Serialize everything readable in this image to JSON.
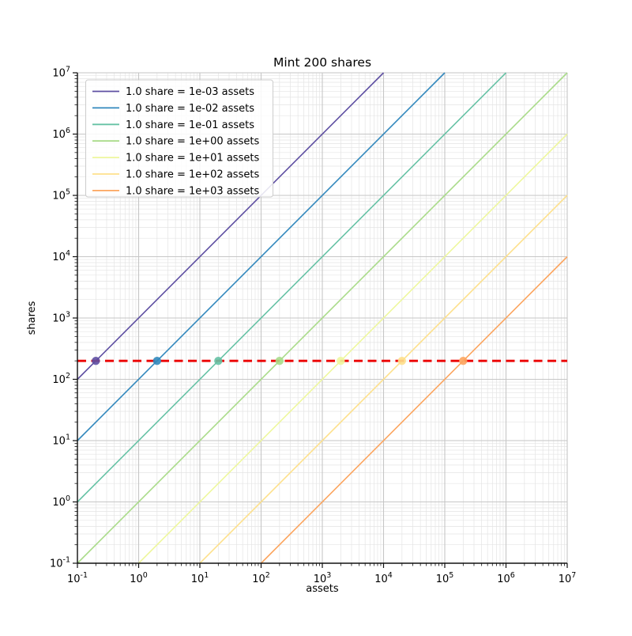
{
  "figure": {
    "background": "#ffffff"
  },
  "chart_data": {
    "type": "line",
    "title": "Mint 200 shares",
    "xlabel": "assets",
    "ylabel": "shares",
    "xscale": "log",
    "yscale": "log",
    "xlim": [
      0.1,
      10000000
    ],
    "ylim": [
      0.1,
      10000000
    ],
    "x_tick_exponents": [
      -1,
      0,
      1,
      2,
      3,
      4,
      5,
      6,
      7
    ],
    "y_tick_exponents": [
      -1,
      0,
      1,
      2,
      3,
      4,
      5,
      6,
      7
    ],
    "grid": {
      "which": "both",
      "major_color": "#c6c6c6",
      "minor_color": "#e4e4e4"
    },
    "series": [
      {
        "label": "1.0 share = 1e-03 assets",
        "assets_per_share": 0.001,
        "color": "#5e4fa2",
        "intersection": {
          "assets": 0.2,
          "shares": 200
        }
      },
      {
        "label": "1.0 share = 1e-02 assets",
        "assets_per_share": 0.01,
        "color": "#3288bd",
        "intersection": {
          "assets": 2,
          "shares": 200
        }
      },
      {
        "label": "1.0 share = 1e-01 assets",
        "assets_per_share": 0.1,
        "color": "#66c2a5",
        "intersection": {
          "assets": 20,
          "shares": 200
        }
      },
      {
        "label": "1.0 share = 1e+00 assets",
        "assets_per_share": 1,
        "color": "#a9db89",
        "intersection": {
          "assets": 200,
          "shares": 200
        }
      },
      {
        "label": "1.0 share = 1e+01 assets",
        "assets_per_share": 10,
        "color": "#eef79e",
        "intersection": {
          "assets": 2000,
          "shares": 200
        }
      },
      {
        "label": "1.0 share = 1e+02 assets",
        "assets_per_share": 100,
        "color": "#fee08b",
        "intersection": {
          "assets": 20000,
          "shares": 200
        }
      },
      {
        "label": "1.0 share = 1e+03 assets",
        "assets_per_share": 1000,
        "color": "#fca55f",
        "intersection": {
          "assets": 200000,
          "shares": 200
        }
      }
    ],
    "target_line": {
      "shares": 200,
      "color": "#ec0000",
      "style": "dashed"
    },
    "legend": {
      "position": "upper-left",
      "frame_color": "#cccccc",
      "frame_fill": "#ffffff"
    }
  }
}
